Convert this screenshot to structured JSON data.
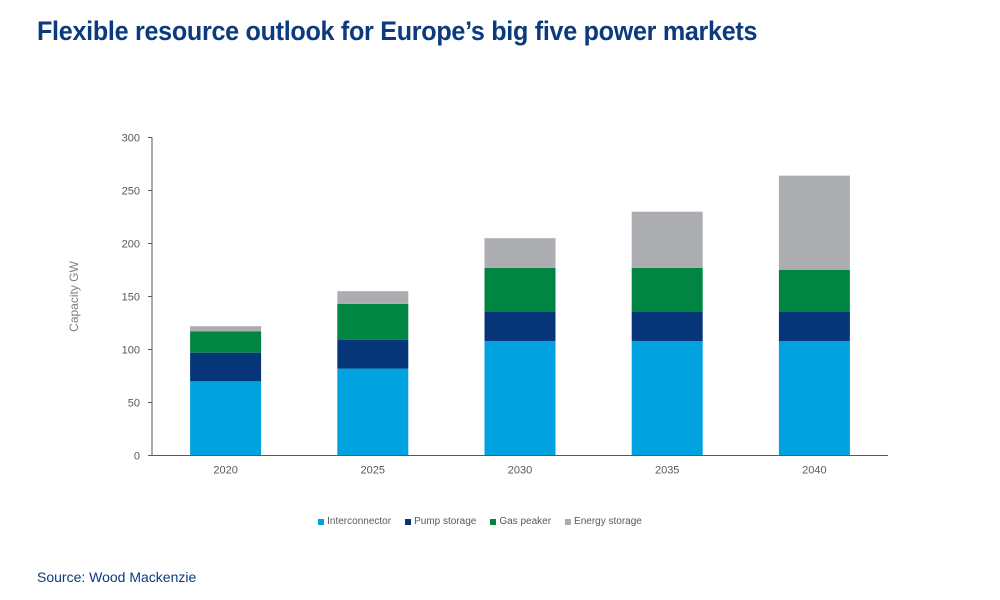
{
  "title": "Flexible resource outlook for Europe’s big five power markets",
  "source": "Source: Wood Mackenzie",
  "chart_data": {
    "type": "bar",
    "stacked": true,
    "title": "Flexible resource outlook for Europe’s big five power markets",
    "xlabel": "",
    "ylabel": "Capacity GW",
    "ylim": [
      0,
      300
    ],
    "yticks": [
      0,
      50,
      100,
      150,
      200,
      250,
      300
    ],
    "categories": [
      "2020",
      "2025",
      "2030",
      "2035",
      "2040"
    ],
    "legend_position": "bottom",
    "grid": false,
    "series": [
      {
        "name": "Interconnector",
        "color": "#00a3e0",
        "values": [
          70,
          82,
          108,
          108,
          108
        ]
      },
      {
        "name": "Pump storage",
        "color": "#06357a",
        "values": [
          27,
          27,
          28,
          28,
          28
        ]
      },
      {
        "name": "Gas peaker",
        "color": "#008542",
        "values": [
          20,
          34,
          41,
          41,
          39
        ]
      },
      {
        "name": "Energy storage",
        "color": "#acadb0",
        "values": [
          5,
          12,
          28,
          53,
          89
        ]
      }
    ]
  }
}
